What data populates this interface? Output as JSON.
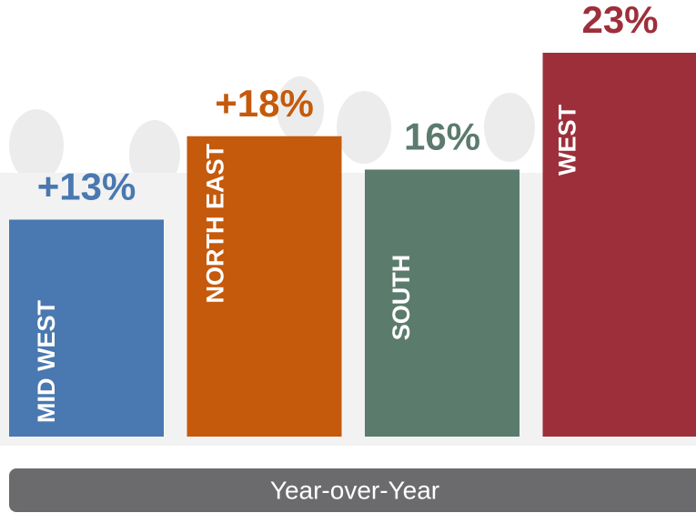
{
  "chart_data": {
    "type": "bar",
    "categories": [
      "MID WEST",
      "NORTH EAST",
      "SOUTH",
      "WEST"
    ],
    "values": [
      13,
      18,
      16,
      23
    ],
    "value_labels": [
      "+13%",
      "+18%",
      "16%",
      "23%"
    ],
    "colors": [
      "#4a78b0",
      "#c55a0c",
      "#5b7b6d",
      "#9d2f3b"
    ],
    "x_label": "Year-over-Year"
  }
}
